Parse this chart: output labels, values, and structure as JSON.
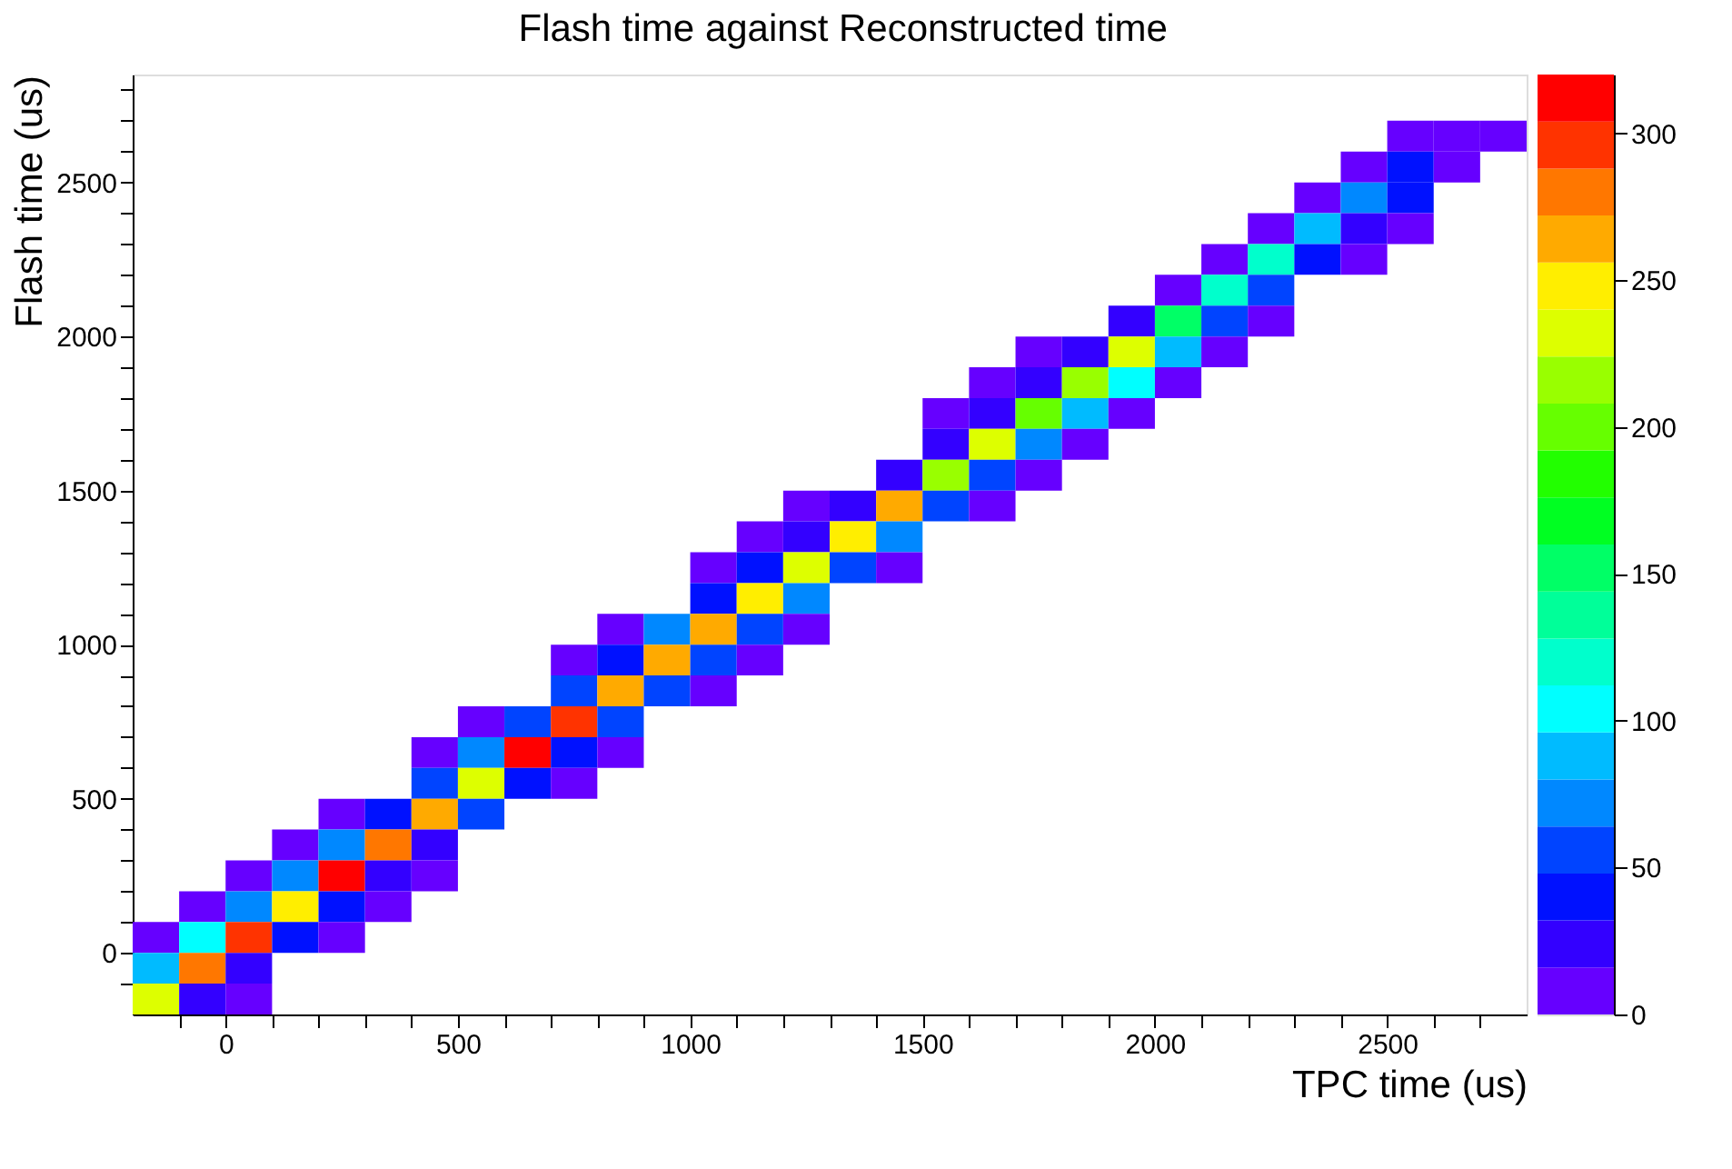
{
  "chart_data": {
    "type": "heatmap",
    "title": "Flash time against Reconstructed time",
    "xlabel": "TPC time (us)",
    "ylabel": "Flash time (us)",
    "x": [
      -150,
      -50,
      50,
      150,
      250,
      350,
      450,
      550,
      650,
      750,
      850,
      950,
      1050,
      1150,
      1250,
      1350,
      1450,
      1550,
      1650,
      1750,
      1850,
      1950,
      2050,
      2150,
      2250,
      2350,
      2450,
      2550,
      2650,
      2750
    ],
    "y": [
      2650,
      2550,
      2450,
      2350,
      2250,
      2150,
      2050,
      1950,
      1850,
      1750,
      1650,
      1550,
      1450,
      1350,
      1250,
      1150,
      1050,
      950,
      850,
      750,
      650,
      550,
      450,
      350,
      250,
      150,
      50,
      -50,
      -150
    ],
    "cells": [
      [
        null,
        null,
        null,
        null,
        null,
        null,
        null,
        null,
        null,
        null,
        null,
        null,
        null,
        null,
        null,
        null,
        null,
        null,
        null,
        null,
        null,
        null,
        null,
        null,
        null,
        null,
        null,
        8,
        8,
        8
      ],
      [
        null,
        null,
        null,
        null,
        null,
        null,
        null,
        null,
        null,
        null,
        null,
        null,
        null,
        null,
        null,
        null,
        null,
        null,
        null,
        null,
        null,
        null,
        null,
        null,
        null,
        null,
        8,
        40,
        8,
        null
      ],
      [
        null,
        null,
        null,
        null,
        null,
        null,
        null,
        null,
        null,
        null,
        null,
        null,
        null,
        null,
        null,
        null,
        null,
        null,
        null,
        null,
        null,
        null,
        null,
        null,
        null,
        8,
        72,
        40,
        null,
        null
      ],
      [
        null,
        null,
        null,
        null,
        null,
        null,
        null,
        null,
        null,
        null,
        null,
        null,
        null,
        null,
        null,
        null,
        null,
        null,
        null,
        null,
        null,
        null,
        null,
        null,
        8,
        88,
        24,
        8,
        null,
        null
      ],
      [
        null,
        null,
        null,
        null,
        null,
        null,
        null,
        null,
        null,
        null,
        null,
        null,
        null,
        null,
        null,
        null,
        null,
        null,
        null,
        null,
        null,
        null,
        null,
        8,
        120,
        40,
        8,
        null,
        null,
        null
      ],
      [
        null,
        null,
        null,
        null,
        null,
        null,
        null,
        null,
        null,
        null,
        null,
        null,
        null,
        null,
        null,
        null,
        null,
        null,
        null,
        null,
        null,
        null,
        8,
        120,
        56,
        null,
        null,
        null,
        null,
        null
      ],
      [
        null,
        null,
        null,
        null,
        null,
        null,
        null,
        null,
        null,
        null,
        null,
        null,
        null,
        null,
        null,
        null,
        null,
        null,
        null,
        null,
        null,
        24,
        152,
        56,
        8,
        null,
        null,
        null,
        null,
        null
      ],
      [
        null,
        null,
        null,
        null,
        null,
        null,
        null,
        null,
        null,
        null,
        null,
        null,
        null,
        null,
        null,
        null,
        null,
        null,
        null,
        8,
        24,
        232,
        88,
        8,
        null,
        null,
        null,
        null,
        null,
        null
      ],
      [
        null,
        null,
        null,
        null,
        null,
        null,
        null,
        null,
        null,
        null,
        null,
        null,
        null,
        null,
        null,
        null,
        null,
        null,
        8,
        24,
        216,
        104,
        8,
        null,
        null,
        null,
        null,
        null,
        null,
        null
      ],
      [
        null,
        null,
        null,
        null,
        null,
        null,
        null,
        null,
        null,
        null,
        null,
        null,
        null,
        null,
        null,
        null,
        null,
        8,
        24,
        200,
        88,
        8,
        null,
        null,
        null,
        null,
        null,
        null,
        null,
        null
      ],
      [
        null,
        null,
        null,
        null,
        null,
        null,
        null,
        null,
        null,
        null,
        null,
        null,
        null,
        null,
        null,
        null,
        null,
        24,
        232,
        72,
        8,
        null,
        null,
        null,
        null,
        null,
        null,
        null,
        null,
        null
      ],
      [
        null,
        null,
        null,
        null,
        null,
        null,
        null,
        null,
        null,
        null,
        null,
        null,
        null,
        null,
        null,
        null,
        24,
        216,
        56,
        8,
        null,
        null,
        null,
        null,
        null,
        null,
        null,
        null,
        null,
        null
      ],
      [
        null,
        null,
        null,
        null,
        null,
        null,
        null,
        null,
        null,
        null,
        null,
        null,
        null,
        null,
        8,
        24,
        264,
        56,
        8,
        null,
        null,
        null,
        null,
        null,
        null,
        null,
        null,
        null,
        null,
        null
      ],
      [
        null,
        null,
        null,
        null,
        null,
        null,
        null,
        null,
        null,
        null,
        null,
        null,
        null,
        8,
        24,
        248,
        72,
        null,
        null,
        null,
        null,
        null,
        null,
        null,
        null,
        null,
        null,
        null,
        null,
        null
      ],
      [
        null,
        null,
        null,
        null,
        null,
        null,
        null,
        null,
        null,
        null,
        null,
        null,
        8,
        40,
        232,
        56,
        8,
        null,
        null,
        null,
        null,
        null,
        null,
        null,
        null,
        null,
        null,
        null,
        null,
        null
      ],
      [
        null,
        null,
        null,
        null,
        null,
        null,
        null,
        null,
        null,
        null,
        null,
        null,
        40,
        248,
        72,
        null,
        null,
        null,
        null,
        null,
        null,
        null,
        null,
        null,
        null,
        null,
        null,
        null,
        null,
        null
      ],
      [
        null,
        null,
        null,
        null,
        null,
        null,
        null,
        null,
        null,
        null,
        8,
        72,
        264,
        56,
        8,
        null,
        null,
        null,
        null,
        null,
        null,
        null,
        null,
        null,
        null,
        null,
        null,
        null,
        null,
        null
      ],
      [
        null,
        null,
        null,
        null,
        null,
        null,
        null,
        null,
        null,
        8,
        40,
        264,
        56,
        8,
        null,
        null,
        null,
        null,
        null,
        null,
        null,
        null,
        null,
        null,
        null,
        null,
        null,
        null,
        null,
        null
      ],
      [
        null,
        null,
        null,
        null,
        null,
        null,
        null,
        null,
        null,
        56,
        264,
        56,
        8,
        null,
        null,
        null,
        null,
        null,
        null,
        null,
        null,
        null,
        null,
        null,
        null,
        null,
        null,
        null,
        null,
        null
      ],
      [
        null,
        null,
        null,
        null,
        null,
        null,
        null,
        8,
        56,
        296,
        56,
        null,
        null,
        null,
        null,
        null,
        null,
        null,
        null,
        null,
        null,
        null,
        null,
        null,
        null,
        null,
        null,
        null,
        null,
        null
      ],
      [
        null,
        null,
        null,
        null,
        null,
        null,
        8,
        72,
        312,
        40,
        8,
        null,
        null,
        null,
        null,
        null,
        null,
        null,
        null,
        null,
        null,
        null,
        null,
        null,
        null,
        null,
        null,
        null,
        null,
        null
      ],
      [
        null,
        null,
        null,
        null,
        null,
        null,
        56,
        232,
        40,
        8,
        null,
        null,
        null,
        null,
        null,
        null,
        null,
        null,
        null,
        null,
        null,
        null,
        null,
        null,
        null,
        null,
        null,
        null,
        null,
        null
      ],
      [
        null,
        null,
        null,
        null,
        8,
        40,
        264,
        56,
        null,
        null,
        null,
        null,
        null,
        null,
        null,
        null,
        null,
        null,
        null,
        null,
        null,
        null,
        null,
        null,
        null,
        null,
        null,
        null,
        null,
        null
      ],
      [
        null,
        null,
        null,
        8,
        72,
        280,
        24,
        null,
        null,
        null,
        null,
        null,
        null,
        null,
        null,
        null,
        null,
        null,
        null,
        null,
        null,
        null,
        null,
        null,
        null,
        null,
        null,
        null,
        null,
        null
      ],
      [
        null,
        null,
        8,
        72,
        312,
        24,
        8,
        null,
        null,
        null,
        null,
        null,
        null,
        null,
        null,
        null,
        null,
        null,
        null,
        null,
        null,
        null,
        null,
        null,
        null,
        null,
        null,
        null,
        null,
        null
      ],
      [
        null,
        8,
        72,
        248,
        40,
        8,
        null,
        null,
        null,
        null,
        null,
        null,
        null,
        null,
        null,
        null,
        null,
        null,
        null,
        null,
        null,
        null,
        null,
        null,
        null,
        null,
        null,
        null,
        null,
        null
      ],
      [
        8,
        104,
        296,
        40,
        8,
        null,
        null,
        null,
        null,
        null,
        null,
        null,
        null,
        null,
        null,
        null,
        null,
        null,
        null,
        null,
        null,
        null,
        null,
        null,
        null,
        null,
        null,
        null,
        null,
        null
      ],
      [
        88,
        280,
        24,
        null,
        null,
        null,
        null,
        null,
        null,
        null,
        null,
        null,
        null,
        null,
        null,
        null,
        null,
        null,
        null,
        null,
        null,
        null,
        null,
        null,
        null,
        null,
        null,
        null,
        null,
        null
      ],
      [
        232,
        24,
        8,
        null,
        null,
        null,
        null,
        null,
        null,
        null,
        null,
        null,
        null,
        null,
        null,
        null,
        null,
        null,
        null,
        null,
        null,
        null,
        null,
        null,
        null,
        null,
        null,
        null,
        null,
        null
      ]
    ],
    "xlim": [
      -200,
      2800
    ],
    "ylim": [
      -200,
      2850
    ],
    "xticks": [
      {
        "value": -100,
        "label": null
      },
      0,
      {
        "value": 100,
        "label": null
      },
      {
        "value": 200,
        "label": null
      },
      {
        "value": 300,
        "label": null
      },
      {
        "value": 400,
        "label": null
      },
      500,
      {
        "value": 600,
        "label": null
      },
      {
        "value": 700,
        "label": null
      },
      {
        "value": 800,
        "label": null
      },
      {
        "value": 900,
        "label": null
      },
      1000,
      {
        "value": 1100,
        "label": null
      },
      {
        "value": 1200,
        "label": null
      },
      {
        "value": 1300,
        "label": null
      },
      {
        "value": 1400,
        "label": null
      },
      1500,
      {
        "value": 1600,
        "label": null
      },
      {
        "value": 1700,
        "label": null
      },
      {
        "value": 1800,
        "label": null
      },
      {
        "value": 1900,
        "label": null
      },
      2000,
      {
        "value": 2100,
        "label": null
      },
      {
        "value": 2200,
        "label": null
      },
      {
        "value": 2300,
        "label": null
      },
      {
        "value": 2400,
        "label": null
      },
      2500,
      {
        "value": 2600,
        "label": null
      },
      {
        "value": 2700,
        "label": null
      }
    ],
    "yticks": [
      {
        "value": -100,
        "label": null
      },
      0,
      {
        "value": 100,
        "label": null
      },
      {
        "value": 200,
        "label": null
      },
      {
        "value": 300,
        "label": null
      },
      {
        "value": 400,
        "label": null
      },
      500,
      {
        "value": 600,
        "label": null
      },
      {
        "value": 700,
        "label": null
      },
      {
        "value": 800,
        "label": null
      },
      {
        "value": 900,
        "label": null
      },
      1000,
      {
        "value": 1100,
        "label": null
      },
      {
        "value": 1200,
        "label": null
      },
      {
        "value": 1300,
        "label": null
      },
      {
        "value": 1400,
        "label": null
      },
      1500,
      {
        "value": 1600,
        "label": null
      },
      {
        "value": 1700,
        "label": null
      },
      {
        "value": 1800,
        "label": null
      },
      {
        "value": 1900,
        "label": null
      },
      2000,
      {
        "value": 2100,
        "label": null
      },
      {
        "value": 2200,
        "label": null
      },
      {
        "value": 2300,
        "label": null
      },
      {
        "value": 2400,
        "label": null
      },
      2500,
      {
        "value": 2600,
        "label": null
      },
      {
        "value": 2700,
        "label": null
      },
      {
        "value": 2800,
        "label": null
      }
    ],
    "clim": [
      0,
      320
    ],
    "cticks": [
      0,
      50,
      100,
      150,
      200,
      250,
      300
    ]
  }
}
